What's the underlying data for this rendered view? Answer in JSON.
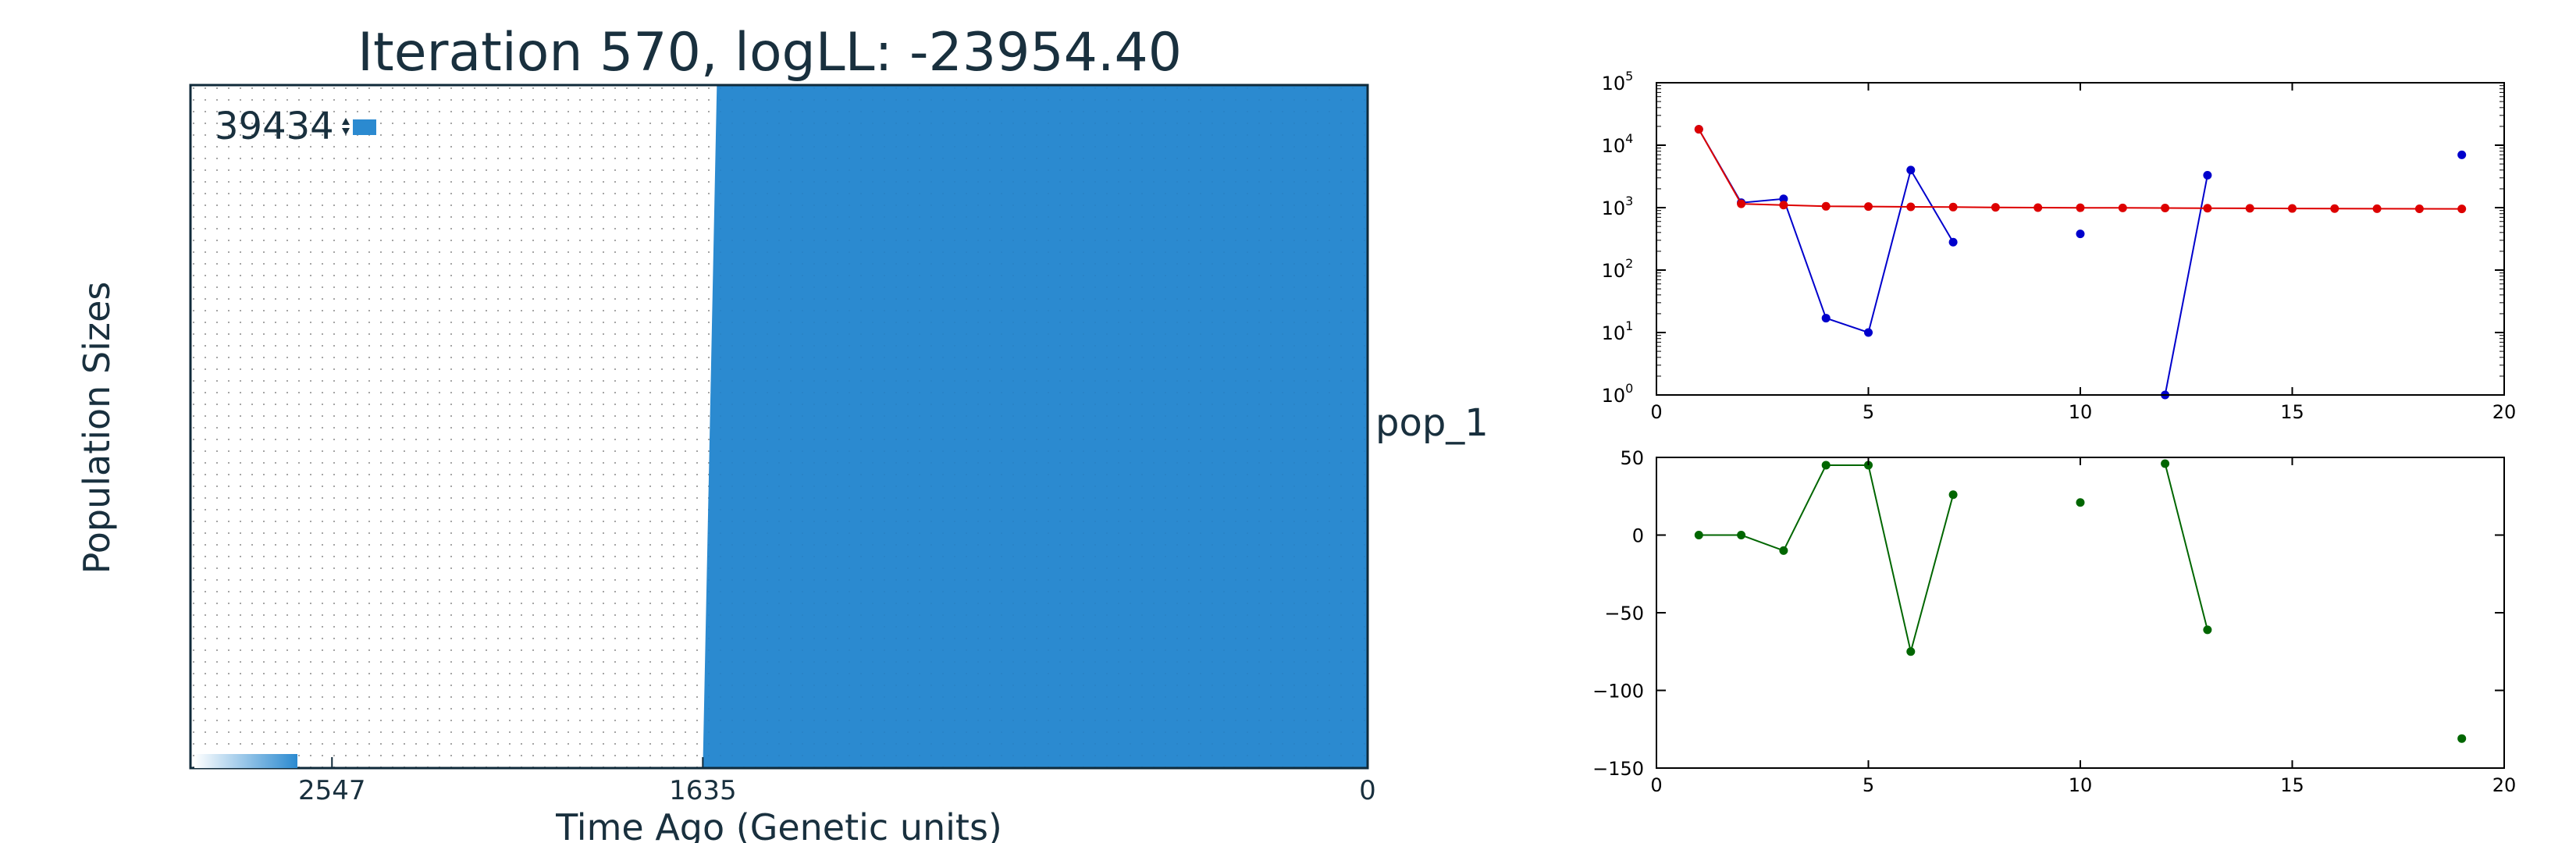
{
  "chart_data": [
    {
      "type": "area",
      "title": "Iteration 570, logLL:  -23954.40",
      "xlabel": "Time Ago (Genetic units)",
      "ylabel": "Population Sizes",
      "x_axis_reversed": true,
      "xlim": [
        2895,
        0
      ],
      "x_ticks": [
        "2547",
        "1635",
        "0"
      ],
      "x_tick_values": [
        2547,
        1635,
        0
      ],
      "population": "pop_1",
      "size_annotation": "39434",
      "fill_color": "#2b8ad0",
      "epochs": [
        {
          "start": 0,
          "end": 1635,
          "size": 39434,
          "color": "#2b8ad0"
        },
        {
          "start": 1635,
          "end": 2895,
          "size": 0,
          "color": "#ffffff"
        }
      ]
    },
    {
      "type": "line",
      "y_scale": "log",
      "xlim": [
        0,
        20
      ],
      "ylim": [
        1,
        100000
      ],
      "x_ticks": [
        "0",
        "5",
        "10",
        "15",
        "20"
      ],
      "y_ticks": [
        "10^0",
        "10^1",
        "10^2",
        "10^3",
        "10^4",
        "10^5"
      ],
      "series": [
        {
          "color": "#0000cc",
          "points": [
            [
              1,
              18000
            ],
            [
              2,
              1200
            ],
            [
              3,
              1380
            ],
            [
              4,
              17
            ],
            [
              5,
              10
            ],
            [
              6,
              4000
            ],
            [
              7,
              280
            ],
            [
              null,
              null
            ],
            [
              10,
              380
            ],
            [
              null,
              null
            ],
            [
              12,
              1
            ],
            [
              13,
              3300
            ],
            [
              null,
              null
            ],
            [
              19,
              7000
            ]
          ]
        },
        {
          "color": "#dd0000",
          "points": [
            [
              1,
              18000
            ],
            [
              2,
              1150
            ],
            [
              3,
              1100
            ],
            [
              4,
              1050
            ],
            [
              5,
              1040
            ],
            [
              6,
              1030
            ],
            [
              7,
              1020
            ],
            [
              8,
              1010
            ],
            [
              9,
              1000
            ],
            [
              10,
              995
            ],
            [
              11,
              990
            ],
            [
              12,
              985
            ],
            [
              13,
              980
            ],
            [
              14,
              975
            ],
            [
              15,
              970
            ],
            [
              16,
              965
            ],
            [
              17,
              960
            ],
            [
              18,
              958
            ],
            [
              19,
              955
            ]
          ]
        }
      ]
    },
    {
      "type": "line",
      "xlim": [
        0,
        20
      ],
      "ylim": [
        -150,
        50
      ],
      "x_ticks": [
        "0",
        "5",
        "10",
        "15",
        "20"
      ],
      "y_ticks": [
        "50",
        "0",
        "−50",
        "−100",
        "−150"
      ],
      "series": [
        {
          "color": "#006600",
          "points": [
            [
              1,
              0
            ],
            [
              2,
              0
            ],
            [
              3,
              -10
            ],
            [
              4,
              45
            ],
            [
              5,
              45
            ],
            [
              6,
              -75
            ],
            [
              7,
              26
            ],
            [
              null,
              null
            ],
            [
              10,
              21
            ],
            [
              null,
              null
            ],
            [
              12,
              46
            ],
            [
              13,
              -61
            ],
            [
              null,
              null
            ],
            [
              19,
              -131
            ]
          ]
        }
      ]
    }
  ]
}
